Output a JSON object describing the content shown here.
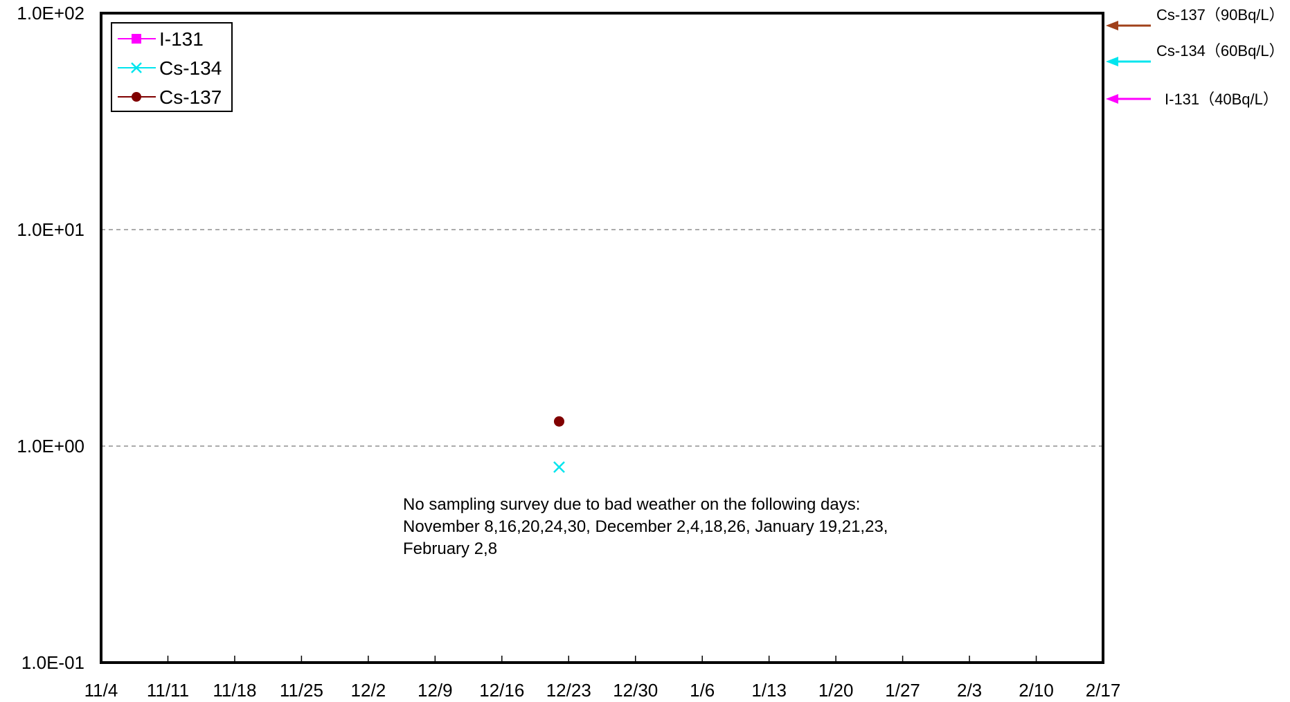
{
  "chart_data": {
    "type": "scatter",
    "title": "",
    "xlabel": "",
    "ylabel": "",
    "y_scale": "log",
    "ylim": [
      0.1,
      100
    ],
    "y_ticks": [
      "1.0E-01",
      "1.0E+00",
      "1.0E+01",
      "1.0E+02"
    ],
    "x_ticks": [
      "11/4",
      "11/11",
      "11/18",
      "11/25",
      "12/2",
      "12/9",
      "12/16",
      "12/23",
      "12/30",
      "1/6",
      "1/13",
      "1/20",
      "1/27",
      "2/3",
      "2/10",
      "2/17"
    ],
    "grid": "horizontal dashed at major ticks",
    "legend_position": "top-left",
    "series": [
      {
        "name": "I-131",
        "color": "#ff00ff",
        "marker": "square",
        "points": []
      },
      {
        "name": "Cs-134",
        "color": "#00e5ee",
        "marker": "x",
        "points": [
          {
            "x": "12/22",
            "y": 0.8
          }
        ]
      },
      {
        "name": "Cs-137",
        "color": "#800000",
        "marker": "circle",
        "points": [
          {
            "x": "12/22",
            "y": 1.3
          }
        ]
      }
    ],
    "reference_limits": [
      {
        "label": "Cs-137（90Bq/L）",
        "value": 90,
        "color": "#a0401a"
      },
      {
        "label": "Cs-134（60Bq/L）",
        "value": 60,
        "color": "#00e5ee"
      },
      {
        "label": "I-131（40Bq/L）",
        "value": 40,
        "color": "#ff00ff"
      }
    ],
    "annotation": [
      "No sampling survey due to bad weather on the following days:",
      "November 8,16,20,24,30, December 2,4,18,26, January 19,21,23,",
      "February 2,8"
    ]
  }
}
